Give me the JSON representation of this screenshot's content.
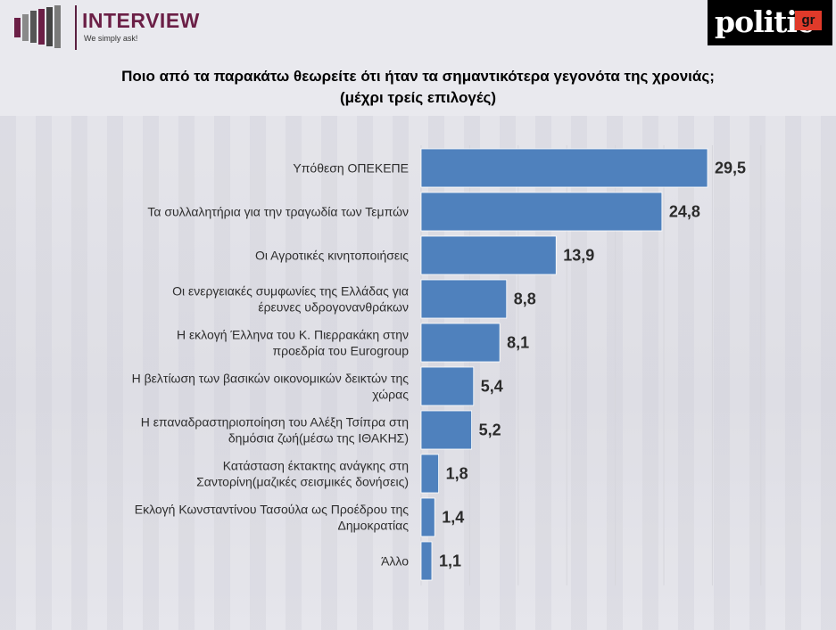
{
  "header": {
    "logo_text": "INTERVIEW",
    "logo_tagline": "We simply ask!",
    "publisher_logo_word": "politic",
    "publisher_logo_badge": "gr"
  },
  "colors": {
    "bar": "#4f81bd",
    "logo_brand": "#6b1f46",
    "publisher_badge": "#e03a2a"
  },
  "chart_data": {
    "type": "bar",
    "orientation": "horizontal",
    "title_line1": "Ποιο από τα παρακάτω θεωρείτε ότι ήταν τα σημαντικότερα γεγονότα της χρονιάς;",
    "title_line2": "(μέχρι τρείς επιλογές)",
    "categories": [
      [
        "Υπόθεση ΟΠΕΚΕΠΕ"
      ],
      [
        "Τα συλλαλητήρια για την τραγωδία των Τεμπών"
      ],
      [
        "Οι Αγροτικές κινητοποιήσεις"
      ],
      [
        "Οι ενεργειακές συμφωνίες της Ελλάδας για",
        "έρευνες υδρογονανθράκων"
      ],
      [
        "Η εκλογή Έλληνα του Κ. Πιερρακάκη στην",
        "προεδρία του Eurogroup"
      ],
      [
        "Η βελτίωση των βασικών οικονομικών δεικτών της",
        "χώρας"
      ],
      [
        "Η επαναδραστηριοποίηση του Αλέξη Τσίπρα στη",
        "δημόσια ζωή(μέσω της ΙΘΑΚΗΣ)"
      ],
      [
        "Κατάσταση έκτακτης ανάγκης στη",
        "Σαντορίνη(μαζικές σεισμικές δονήσεις)"
      ],
      [
        "Εκλογή Κωνσταντίνου Τασούλα ως Προέδρου της",
        "Δημοκρατίας"
      ],
      [
        "Άλλο"
      ]
    ],
    "values": [
      29.5,
      24.8,
      13.9,
      8.8,
      8.1,
      5.4,
      5.2,
      1.8,
      1.4,
      1.1
    ],
    "value_labels": [
      "29,5",
      "24,8",
      "13,9",
      "8,8",
      "8,1",
      "5,4",
      "5,2",
      "1,8",
      "1,4",
      "1,1"
    ],
    "xlim": [
      0,
      35
    ],
    "grid": true,
    "legend": "none"
  }
}
